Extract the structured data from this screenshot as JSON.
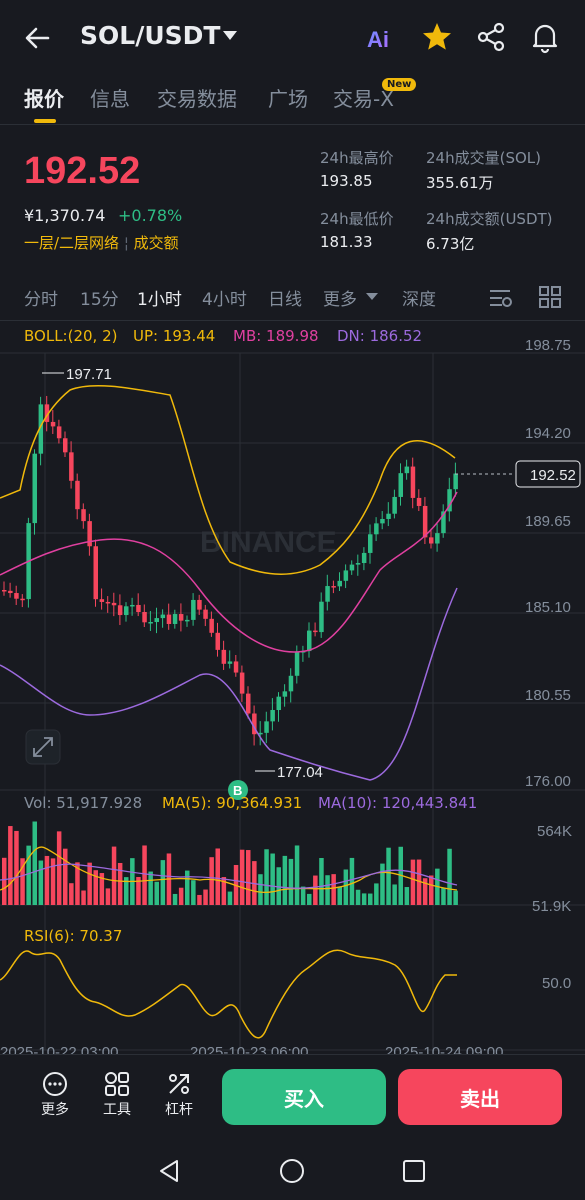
{
  "header": {
    "pair": "SOL/USDT",
    "icons": [
      "back-arrow-icon",
      "ai-icon",
      "star-icon",
      "share-icon",
      "bell-icon"
    ],
    "ai_label": "Ai"
  },
  "tabs": [
    {
      "label": "报价",
      "active": true
    },
    {
      "label": "信息"
    },
    {
      "label": "交易数据"
    },
    {
      "label": "广场"
    },
    {
      "label": "交易-X",
      "badge": "New"
    }
  ],
  "ticker": {
    "price": "192.52",
    "cny": "¥1,370.74",
    "change": "+0.78%",
    "link1": "一层/二层网络",
    "link2": "成交额",
    "stats": [
      {
        "label": "24h最高价",
        "value": "193.85"
      },
      {
        "label": "24h成交量(SOL)",
        "value": "355.61万"
      },
      {
        "label": "24h最低价",
        "value": "181.33"
      },
      {
        "label": "24h成交额(USDT)",
        "value": "6.73亿"
      }
    ]
  },
  "timeframes": [
    {
      "label": "分时"
    },
    {
      "label": "15分"
    },
    {
      "label": "1小时",
      "active": true
    },
    {
      "label": "4小时"
    },
    {
      "label": "日线"
    },
    {
      "label": "更多"
    },
    {
      "label": "深度"
    }
  ],
  "boll": {
    "label": "BOLL:(20, 2)",
    "up": "UP: 193.44",
    "mb": "MB: 189.98",
    "dn": "DN: 186.52"
  },
  "price_axis": [
    "198.75",
    "194.20",
    "189.65",
    "185.10",
    "180.55",
    "176.00"
  ],
  "price_tag": "192.52",
  "high_label": "197.71",
  "low_label": "177.04",
  "buy_marker": "B",
  "watermark": "BINANCE",
  "volume": {
    "vol": "Vol: 51,917.928",
    "ma5": "MA(5): 90,364.931",
    "ma10": "MA(10): 120,443.841",
    "axis_top": "564K",
    "axis_bottom": "51.9K"
  },
  "rsi": {
    "label": "RSI(6): 70.37",
    "axis": "50.0"
  },
  "time_axis": [
    "2025-10-22 03:00",
    "2025-10-23 06:00",
    "2025-10-24 09:00"
  ],
  "bottom": {
    "more": "更多",
    "tools": "工具",
    "leverage": "杠杆",
    "buy": "买入",
    "sell": "卖出"
  },
  "colors": {
    "up": "#2ebd85",
    "down": "#f6465d",
    "accent": "#f0b90b",
    "boll_up": "#f0b90b",
    "boll_mb": "#e040a0",
    "boll_dn": "#9c6ade"
  },
  "chart_data": {
    "type": "candlestick",
    "interval": "1小时",
    "ylim": [
      176.0,
      198.75
    ],
    "series": [
      {
        "name": "BOLL UP",
        "last": 193.44
      },
      {
        "name": "BOLL MB",
        "last": 189.98
      },
      {
        "name": "BOLL DN",
        "last": 186.52
      }
    ],
    "current_price": 192.52,
    "visible_high": 197.71,
    "visible_low": 177.04,
    "volume_axis": [
      "564K",
      "51.9K"
    ],
    "rsi_axis": [
      "50.0"
    ]
  }
}
